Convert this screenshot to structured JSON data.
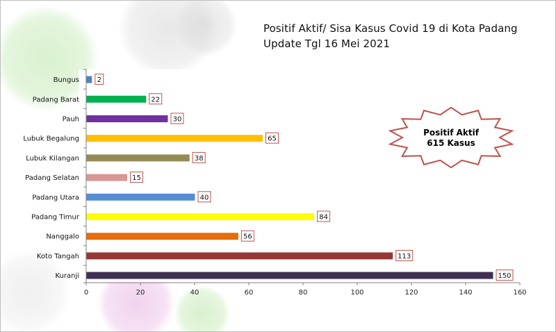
{
  "header": {
    "title_line1": "Positif Aktif/ Sisa Kasus Covid  19 di Kota Padang",
    "title_line2": "Update Tgl 16 Mei 2021"
  },
  "badge": {
    "line1": "Positif  Aktif",
    "line2": "615 Kasus",
    "border_color": "#c0504d"
  },
  "chart_data": {
    "type": "bar",
    "orientation": "horizontal",
    "title": "Positif Aktif/ Sisa Kasus Covid  19 di Kota Padang Update Tgl 16 Mei 2021",
    "xlabel": "",
    "ylabel": "",
    "xlim": [
      0,
      160
    ],
    "xticks": [
      0,
      20,
      40,
      60,
      80,
      100,
      120,
      140,
      160
    ],
    "grid": false,
    "categories": [
      "Bungus",
      "Padang Barat",
      "Pauh",
      "Lubuk Begalung",
      "Lubuk Kilangan",
      "Padang Selatan",
      "Padang Utara",
      "Padang Timur",
      "Nanggalo",
      "Koto Tangah",
      "Kuranji"
    ],
    "values": [
      2,
      22,
      30,
      65,
      38,
      15,
      40,
      84,
      56,
      113,
      150
    ],
    "colors": [
      "#4f81bd",
      "#00b050",
      "#7030a0",
      "#ffc000",
      "#948a54",
      "#d99694",
      "#558ed5",
      "#ffff00",
      "#e46c0a",
      "#953735",
      "#403152"
    ],
    "data_labels": [
      "2",
      "22",
      "30",
      "65",
      "38",
      "15",
      "40",
      "84",
      "56",
      "113",
      "150"
    ]
  }
}
